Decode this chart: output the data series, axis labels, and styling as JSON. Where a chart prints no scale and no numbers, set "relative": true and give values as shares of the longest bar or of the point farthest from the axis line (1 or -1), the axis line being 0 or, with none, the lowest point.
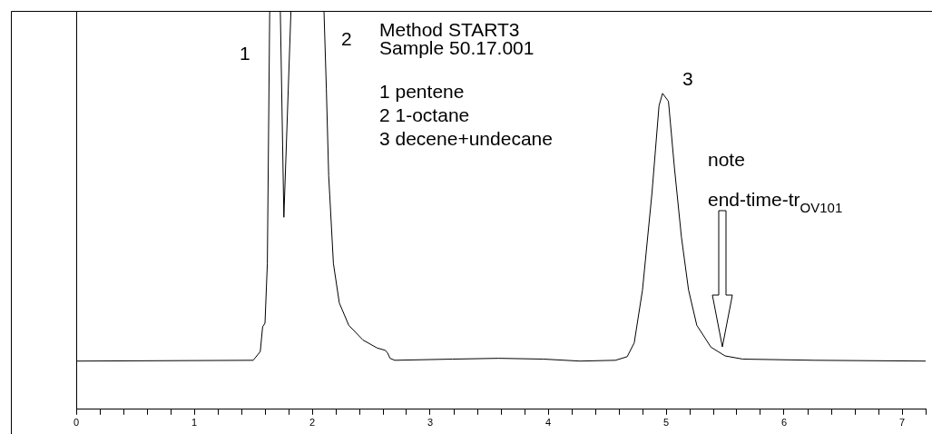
{
  "chart_data": {
    "type": "line",
    "relative": true,
    "xlim": [
      0,
      7.2
    ],
    "xticks": [
      0,
      {
        "value": 0.2,
        "label": null
      },
      {
        "value": 0.4,
        "label": null
      },
      {
        "value": 0.6,
        "label": null
      },
      {
        "value": 0.8,
        "label": null
      },
      1,
      {
        "value": 1.2,
        "label": null
      },
      {
        "value": 1.4,
        "label": null
      },
      {
        "value": 1.6,
        "label": null
      },
      {
        "value": 1.8,
        "label": null
      },
      2,
      {
        "value": 2.2,
        "label": null
      },
      {
        "value": 2.4,
        "label": null
      },
      {
        "value": 2.6,
        "label": null
      },
      {
        "value": 2.8,
        "label": null
      },
      3,
      {
        "value": 3.2,
        "label": null
      },
      {
        "value": 3.4,
        "label": null
      },
      {
        "value": 3.6,
        "label": null
      },
      {
        "value": 3.8,
        "label": null
      },
      4,
      {
        "value": 4.2,
        "label": null
      },
      {
        "value": 4.4,
        "label": null
      },
      {
        "value": 4.6,
        "label": null
      },
      {
        "value": 4.8,
        "label": null
      },
      5,
      {
        "value": 5.2,
        "label": null
      },
      {
        "value": 5.4,
        "label": null
      },
      {
        "value": 5.6,
        "label": null
      },
      {
        "value": 5.8,
        "label": null
      },
      6,
      {
        "value": 6.2,
        "label": null
      },
      {
        "value": 6.4,
        "label": null
      },
      {
        "value": 6.6,
        "label": null
      },
      {
        "value": 6.8,
        "label": null
      },
      7,
      {
        "value": 7.2,
        "label": null
      }
    ],
    "x": [
      0,
      1.5,
      1.56,
      1.58,
      1.6,
      1.62,
      1.64,
      1.73,
      1.76,
      1.82,
      2.1,
      2.12,
      2.14,
      2.18,
      2.23,
      2.31,
      2.43,
      2.55,
      2.62,
      2.64,
      2.66,
      2.7,
      3.19,
      3.58,
      3.96,
      4.27,
      4.57,
      4.67,
      4.73,
      4.8,
      4.88,
      4.94,
      4.97,
      5.02,
      5.07,
      5.13,
      5.19,
      5.26,
      5.38,
      5.5,
      5.65,
      6.26,
      7.2
    ],
    "series": [
      {
        "color": "#000000",
        "values": [
          0.121,
          0.123,
          0.145,
          0.207,
          0.216,
          0.366,
          1,
          1,
          0.482,
          1,
          1,
          0.806,
          0.586,
          0.366,
          0.267,
          0.211,
          0.174,
          0.154,
          0.148,
          0.141,
          0.128,
          0.123,
          0.126,
          0.128,
          0.126,
          0.121,
          0.123,
          0.132,
          0.167,
          0.3,
          0.542,
          0.762,
          0.793,
          0.773,
          0.608,
          0.432,
          0.3,
          0.211,
          0.156,
          0.134,
          0.126,
          0.123,
          0.121
        ]
      }
    ],
    "grid": false,
    "legend": false,
    "marker": "none",
    "line_style": "solid",
    "annotations": [
      "1",
      "2",
      "3",
      "Method START3",
      "Sample 50.17.001",
      "1 pentene",
      "2 1-octane",
      "3 decene+undecane",
      "note",
      "end-time-tr$_{OV101}$"
    ]
  }
}
